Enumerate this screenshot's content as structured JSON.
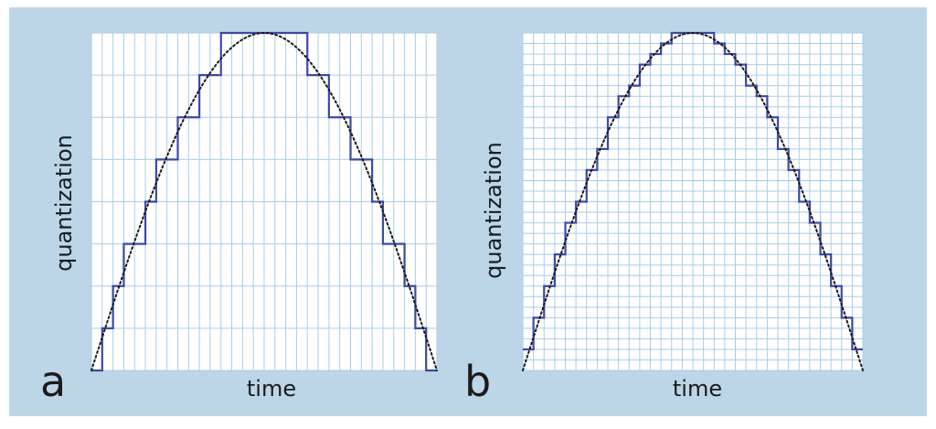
{
  "colors": {
    "background": "#bcd6e8",
    "plot_area": "#ffffff",
    "grid": "#a9cde6",
    "staircase": "#3a4aa6",
    "curve": "#1a1a1a",
    "text": "#1b1b1b"
  },
  "panels": [
    {
      "letter": "a",
      "xlabel": "time",
      "ylabel": "quantization",
      "time_divisions": 32,
      "quantization_levels": 8
    },
    {
      "letter": "b",
      "xlabel": "time",
      "ylabel": "quantization",
      "time_divisions": 32,
      "quantization_levels": 32
    }
  ],
  "signal": {
    "shape": "half-sine (dotted)",
    "sampled": "staircase (solid)"
  }
}
